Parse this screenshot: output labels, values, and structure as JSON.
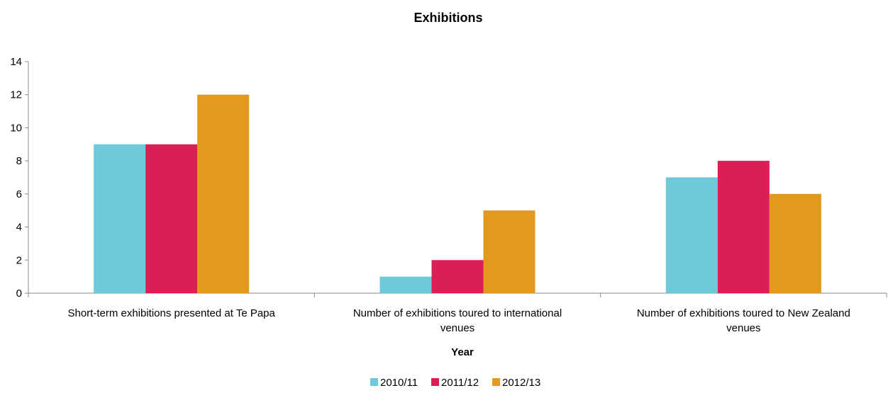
{
  "chart_data": {
    "type": "bar",
    "title": "Exhibitions",
    "xlabel": "Year",
    "ylabel": "",
    "ylim": [
      0,
      14
    ],
    "yticks": [
      0,
      2,
      4,
      6,
      8,
      10,
      12,
      14
    ],
    "grid": false,
    "legend_position": "bottom",
    "categories": [
      [
        "Short-term exhibitions presented at Te Papa"
      ],
      [
        "Number of exhibitions toured to international",
        "venues"
      ],
      [
        "Number of exhibitions toured to New Zealand",
        "venues"
      ]
    ],
    "series": [
      {
        "name": "2010/11",
        "color": "#6ecadb",
        "values": [
          9,
          1,
          7
        ]
      },
      {
        "name": "2011/12",
        "color": "#db1f55",
        "values": [
          9,
          2,
          8
        ]
      },
      {
        "name": "2012/13",
        "color": "#e2991c",
        "values": [
          12,
          5,
          6
        ]
      }
    ]
  }
}
